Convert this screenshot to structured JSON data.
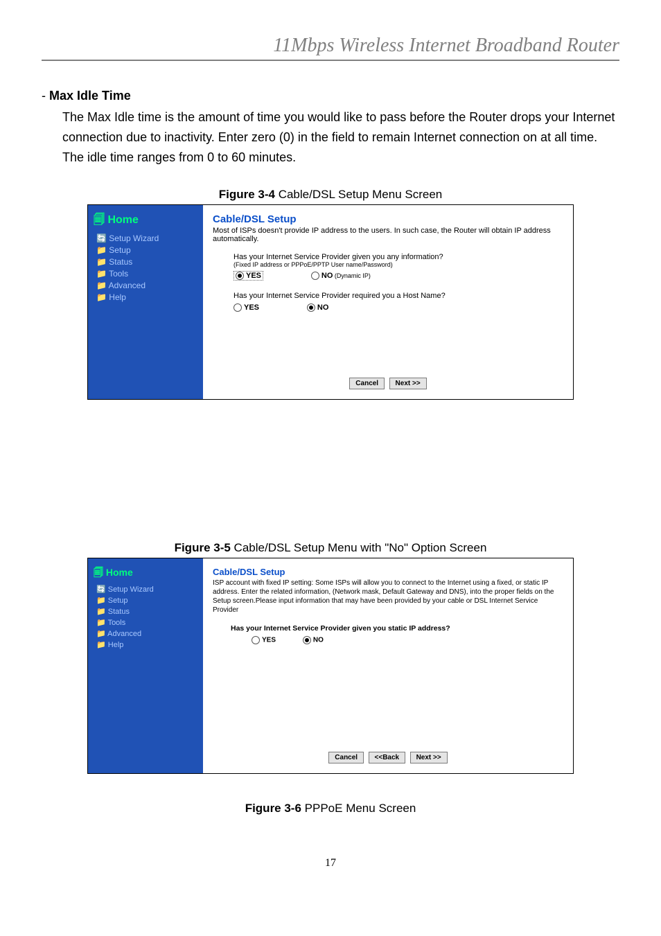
{
  "doc_title": "11Mbps  Wireless  Internet  Broadband  Router",
  "section": {
    "heading_dash": "- ",
    "heading_bold": "Max Idle Time",
    "body": "The Max Idle time is the amount of time you would like to pass before the Router drops your Internet connection due to inactivity. Enter zero (0) in the field to remain Internet connection on at all time. The idle time ranges from 0 to 60 minutes."
  },
  "figures": {
    "f34": {
      "id": "Figure 3-4",
      "text": " Cable/DSL Setup Menu Screen"
    },
    "f35": {
      "id": "Figure 3-5",
      "text": " Cable/DSL Setup Menu with \"No\" Option Screen"
    },
    "f36": {
      "id": "Figure 3-6",
      "text": " PPPoE Menu Screen"
    }
  },
  "nav": {
    "home_glyph": "🗐 ",
    "home": "Home",
    "items": [
      {
        "glyph": "🔄",
        "label": "Setup Wizard"
      },
      {
        "glyph": "📁",
        "label": "Setup"
      },
      {
        "glyph": "📁",
        "label": "Status"
      },
      {
        "glyph": "📁",
        "label": "Tools"
      },
      {
        "glyph": "📁",
        "label": "Advanced"
      },
      {
        "glyph": "📁",
        "label": "Help"
      }
    ]
  },
  "screenA": {
    "title": "Cable/DSL Setup",
    "desc": "Most of ISPs doesn't provide IP address to the users. In such case, the Router will obtain IP address automatically.",
    "q1": "Has your Internet Service Provider given you any information?",
    "q1_sub": "(Fixed IP address or PPPoE/PPTP User name/Password)",
    "q1_yes": "YES",
    "q1_no_label": "NO",
    "q1_no_paren": " (Dynamic IP)",
    "q2": "Has your Internet Service Provider required  you a Host Name?",
    "q2_yes": "YES",
    "q2_no": "NO",
    "btn_cancel": "Cancel",
    "btn_next": "Next >>"
  },
  "screenB": {
    "title": "Cable/DSL Setup",
    "desc": "ISP account with fixed IP setting: Some ISPs will allow you to connect to the Internet using a fixed, or static IP address. Enter the related information, (Network mask, Default Gateway and DNS), into the proper fields on the Setup screen.Please input information that may have been provided by your cable or DSL Internet Service Provider",
    "q1": "Has your Internet Service Provider given you static IP address?",
    "q1_yes": "YES",
    "q1_no": "NO",
    "btn_cancel": "Cancel",
    "btn_back": "<<Back",
    "btn_next": "Next >>"
  },
  "page_num": "17",
  "colors": {
    "nav_bg": "#2052b5",
    "nav_home": "#00ff7f",
    "nav_link": "#a8c8ff",
    "title_link": "#0b4fc9",
    "doc_gray": "#808080"
  }
}
